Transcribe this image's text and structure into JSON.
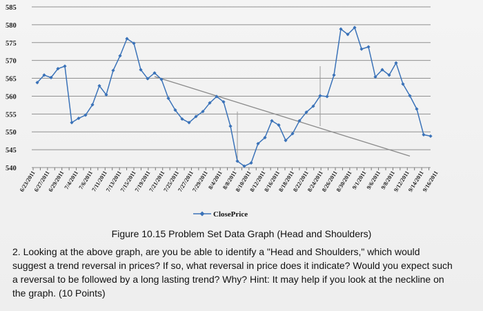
{
  "chart_data": {
    "type": "line",
    "title": "",
    "xlabel": "",
    "ylabel": "",
    "ylim": [
      540,
      585
    ],
    "yticks": [
      540,
      545,
      550,
      555,
      560,
      565,
      570,
      575,
      580,
      585
    ],
    "grid": true,
    "legend_position": "bottom-center",
    "x_tick_labels": [
      "6/23/2011",
      "6/27/2011",
      "6/29/2011",
      "7/4/2011",
      "7/6/2011",
      "7/11/2011",
      "7/13/2011",
      "7/15/2011",
      "7/19/2011",
      "7/21/2011",
      "7/25/2011",
      "7/27/2011",
      "7/29/2011",
      "8/4/2011",
      "8/8/2011",
      "8/10/2011",
      "8/12/2011",
      "8/16/2011",
      "8/18/2011",
      "8/22/2011",
      "8/24/2011",
      "8/26/2011",
      "8/30/2011",
      "9/1/2011",
      "9/6/2011",
      "9/8/2011",
      "9/12/2011",
      "9/14/2011",
      "9/16/2011"
    ],
    "series": [
      {
        "name": "ClosePrice",
        "color": "#3a72b8",
        "values": [
          563.8,
          565.9,
          565.2,
          567.7,
          568.4,
          552.6,
          553.8,
          554.7,
          557.6,
          562.9,
          560.4,
          567.2,
          571.3,
          576.1,
          574.8,
          567.4,
          564.9,
          566.5,
          564.7,
          559.4,
          556.1,
          553.6,
          552.6,
          554.3,
          555.7,
          558.1,
          559.9,
          558.4,
          551.6,
          541.8,
          540.4,
          541.3,
          546.7,
          548.4,
          553.1,
          551.9,
          547.6,
          549.5,
          553.1,
          555.5,
          557.2,
          560.1,
          559.9,
          565.9,
          578.8,
          577.3,
          579.2,
          573.2,
          573.8,
          565.4,
          567.4,
          565.9,
          569.3,
          563.4,
          560.1,
          556.4,
          549.2,
          548.8
        ]
      }
    ],
    "annotations": {
      "neckline": {
        "from_index": 17,
        "from_value": 565.5,
        "to_index": 54,
        "to_value": 543.2,
        "color": "#8a8a8a"
      },
      "vertical_markers": [
        {
          "index": 29,
          "from_value": 555.7,
          "to_value": 541.8
        },
        {
          "index": 41,
          "from_value": 568.4,
          "to_value": 551.6
        }
      ]
    }
  },
  "legend": {
    "series_label": "ClosePrice"
  },
  "caption": "Figure 10.15 Problem Set Data Graph (Head and Shoulders)",
  "question": "2. Looking at the above graph, are you be able to identify a \"Head and Shoulders,\" which would suggest a trend reversal in prices? If so, what reversal in price does it indicate? Would you expect such a reversal to be followed by a long lasting trend? Why? Hint: It may help if you look at the neckline on the graph. (10 Points)"
}
